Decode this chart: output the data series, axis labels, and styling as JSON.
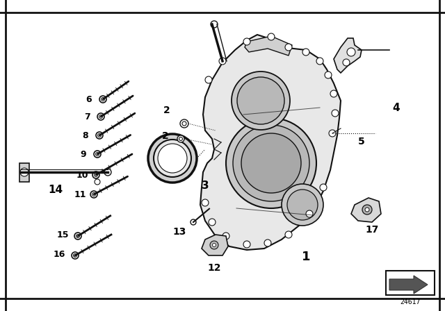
{
  "bg_color": "#ffffff",
  "border_color": "#000000",
  "lc": "#111111",
  "tc": "#000000",
  "diagram_code": "24617",
  "label_4": "4",
  "label_1": "1",
  "label_2a": "2",
  "label_2b": "2",
  "label_3": "3",
  "label_5": "5",
  "label_6": "6",
  "label_7": "7",
  "label_8": "8",
  "label_9": "9",
  "label_10": "10",
  "label_11": "11",
  "label_12": "12",
  "label_13": "13",
  "label_14": "14",
  "label_15": "15",
  "label_16": "16",
  "label_17": "17"
}
